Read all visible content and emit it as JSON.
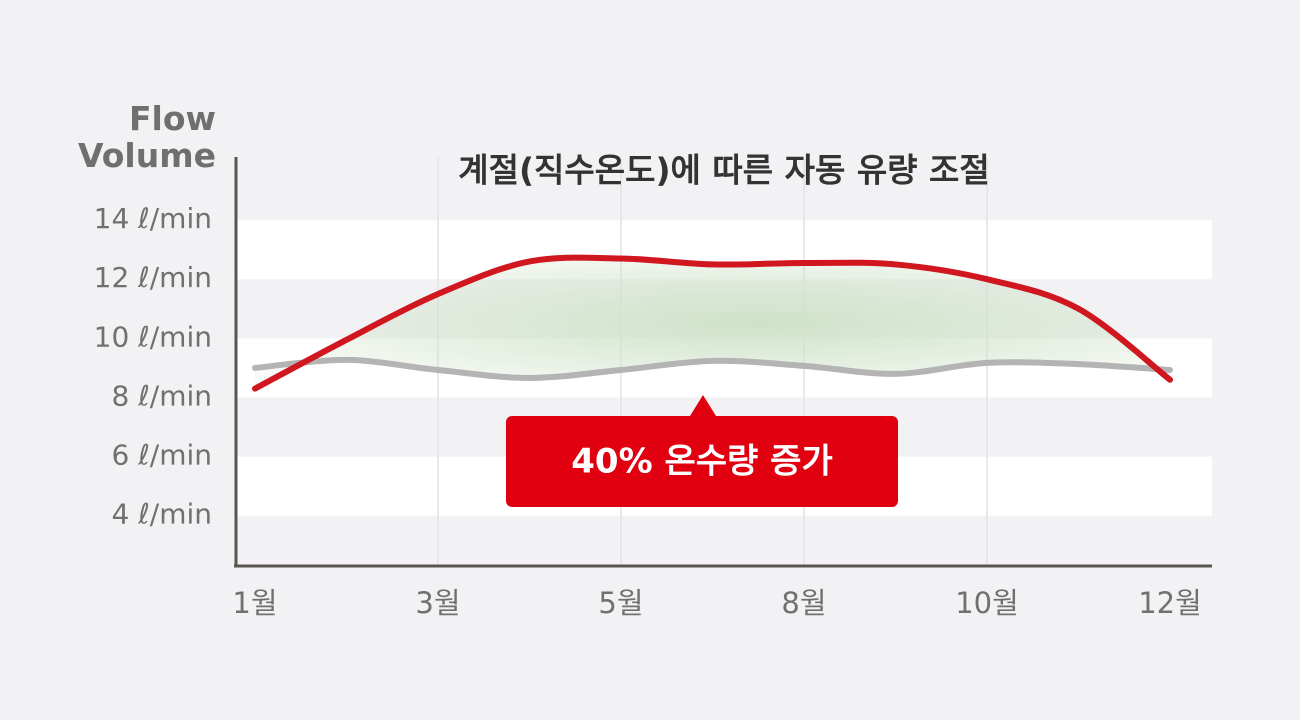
{
  "chart_data": {
    "type": "line",
    "title": "계절(직수온도)에 따른 자동 유량 조절",
    "y_label": "Flow Volume",
    "annotation": "40% 온수량 증가",
    "categories": [
      "1월",
      null,
      "3월",
      null,
      "5월",
      null,
      "8월",
      null,
      "10월",
      null,
      "12월"
    ],
    "series": [
      {
        "color": "#d0161f",
        "values": [
          8.3,
          9.95,
          11.5,
          12.6,
          12.7,
          12.5,
          12.55,
          12.5,
          12.0,
          11.0,
          8.6
        ]
      },
      {
        "color": "#b4b4b4",
        "values": [
          9.0,
          9.27,
          8.93,
          8.66,
          8.93,
          9.24,
          9.07,
          8.8,
          9.17,
          9.13,
          8.93
        ]
      }
    ],
    "ylim": [
      2.3,
      16.1
    ],
    "yticks": [
      {
        "value": 14,
        "label": "14 ℓ/min"
      },
      {
        "value": 12,
        "label": "12 ℓ/min"
      },
      {
        "value": 10,
        "label": "10 ℓ/min"
      },
      {
        "value": 8,
        "label": "8 ℓ/min"
      },
      {
        "value": 6,
        "label": "6 ℓ/min"
      },
      {
        "value": 4,
        "label": "4 ℓ/min"
      }
    ],
    "fill_color": "#cfe2c8",
    "annotation_color": "#e00010"
  }
}
